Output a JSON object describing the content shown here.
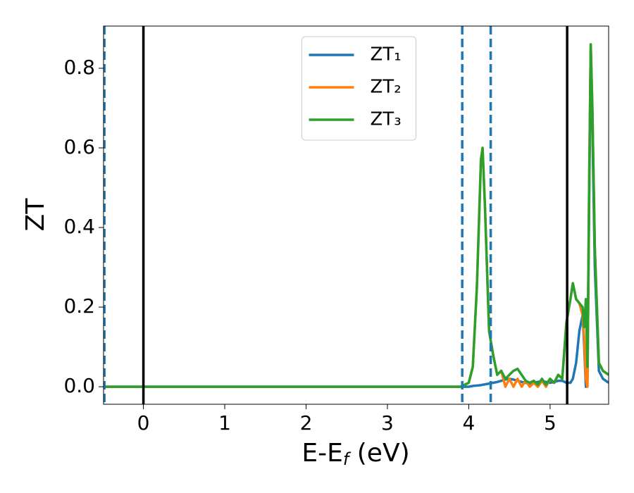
{
  "chart_data": {
    "type": "line",
    "ylabel": "ZT",
    "xlabel": {
      "text": "E-E",
      "subscript": "f",
      "suffix": " (eV)"
    },
    "x": [
      -0.49,
      3.9,
      4.0,
      4.05,
      4.1,
      4.15,
      4.17,
      4.2,
      4.25,
      4.3,
      4.35,
      4.4,
      4.45,
      4.5,
      4.55,
      4.6,
      4.65,
      4.7,
      4.75,
      4.8,
      4.85,
      4.9,
      4.95,
      5.0,
      5.05,
      5.1,
      5.15,
      5.2,
      5.25,
      5.28,
      5.32,
      5.36,
      5.4,
      5.42,
      5.44,
      5.46,
      5.48,
      5.5,
      5.52,
      5.55,
      5.6,
      5.65,
      5.72
    ],
    "series": [
      {
        "name": "ZT₁",
        "color": "#1f77b4",
        "values": [
          0,
          0,
          0.0,
          0.002,
          0.003,
          0.004,
          0.005,
          0.006,
          0.008,
          0.01,
          0.012,
          0.015,
          0.018,
          0.02,
          0.018,
          0.015,
          0.012,
          0.01,
          0.008,
          0.01,
          0.012,
          0.014,
          0.012,
          0.01,
          0.012,
          0.015,
          0.015,
          0.01,
          0.01,
          0.02,
          0.06,
          0.14,
          0.18,
          0.1,
          0.0,
          0.02,
          0.45,
          0.85,
          0.65,
          0.3,
          0.04,
          0.02,
          0.01
        ]
      },
      {
        "name": "ZT₂",
        "color": "#ff7f0e",
        "values": [
          0,
          0,
          0.01,
          0.05,
          0.25,
          0.57,
          0.6,
          0.45,
          0.14,
          0.08,
          0.03,
          0.04,
          0.0,
          0.02,
          0.0,
          0.02,
          0.0,
          0.015,
          0.0,
          0.01,
          0.0,
          0.015,
          0.0,
          0.02,
          0.01,
          0.03,
          0.02,
          0.16,
          0.22,
          0.26,
          0.22,
          0.21,
          0.18,
          0.12,
          0.02,
          0.0,
          0.5,
          0.86,
          0.7,
          0.35,
          0.06,
          0.04,
          0.03
        ]
      },
      {
        "name": "ZT₃",
        "color": "#2ca02c",
        "values": [
          0,
          0,
          0.01,
          0.05,
          0.25,
          0.57,
          0.6,
          0.45,
          0.14,
          0.08,
          0.03,
          0.04,
          0.02,
          0.03,
          0.04,
          0.045,
          0.03,
          0.015,
          0.01,
          0.015,
          0.005,
          0.02,
          0.005,
          0.02,
          0.01,
          0.03,
          0.02,
          0.16,
          0.22,
          0.26,
          0.22,
          0.21,
          0.2,
          0.15,
          0.22,
          0.05,
          0.5,
          0.86,
          0.7,
          0.35,
          0.06,
          0.04,
          0.03
        ]
      }
    ],
    "xlim": [
      -0.49,
      5.72
    ],
    "ylim": [
      -0.044,
      0.906
    ],
    "xticks": [
      0,
      1,
      2,
      3,
      4,
      5
    ],
    "yticks": [
      {
        "value": 0,
        "label": "0.0"
      },
      {
        "value": 0.2,
        "label": "0.2"
      },
      {
        "value": 0.4,
        "label": "0.4"
      },
      {
        "value": 0.6,
        "label": "0.6"
      },
      {
        "value": 0.8,
        "label": "0.8"
      }
    ],
    "vlines": [
      {
        "x": -0.48,
        "color": "#1f77b4",
        "style": "dashed"
      },
      {
        "x": 0,
        "color": "#000000",
        "style": "solid"
      },
      {
        "x": 3.92,
        "color": "#1f77b4",
        "style": "dashed"
      },
      {
        "x": 4.27,
        "color": "#1f77b4",
        "style": "dashed"
      },
      {
        "x": 5.21,
        "color": "#000000",
        "style": "solid"
      }
    ],
    "legend": "upper center",
    "grid": false
  }
}
